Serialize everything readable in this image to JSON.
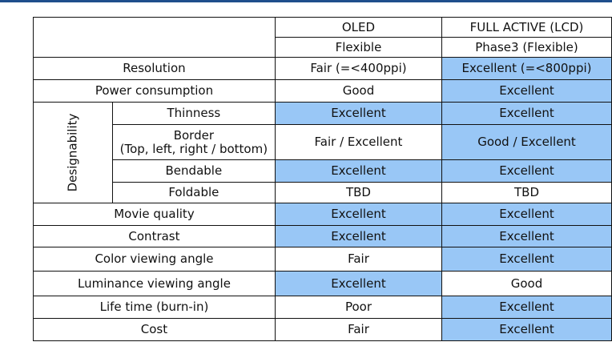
{
  "colors": {
    "highlight": "#99c7f6",
    "border": "#111111",
    "top_bar": "#1f4e8c"
  },
  "header": {
    "col1_line1": "OLED",
    "col1_line2": "Flexible",
    "col2_line1": "FULL ACTIVE (LCD)",
    "col2_line2": "Phase3 (Flexible)"
  },
  "group_label": "Designability",
  "rows": [
    {
      "label": "Resolution",
      "oled": "Fair (=<400ppi)",
      "lcd": "Excellent (=<800ppi)"
    },
    {
      "label": "Power consumption",
      "oled": "Good",
      "lcd": "Excellent"
    },
    {
      "label": "Thinness",
      "oled": "Excellent",
      "lcd": "Excellent"
    },
    {
      "label_line1": "Border",
      "label_line2": "(Top, left, right / bottom)",
      "oled": "Fair / Excellent",
      "lcd": "Good / Excellent"
    },
    {
      "label": "Bendable",
      "oled": "Excellent",
      "lcd": "Excellent"
    },
    {
      "label": "Foldable",
      "oled": "TBD",
      "lcd": "TBD"
    },
    {
      "label": "Movie quality",
      "oled": "Excellent",
      "lcd": "Excellent"
    },
    {
      "label": "Contrast",
      "oled": "Excellent",
      "lcd": "Excellent"
    },
    {
      "label": "Color viewing angle",
      "oled": "Fair",
      "lcd": "Excellent"
    },
    {
      "label": "Luminance viewing angle",
      "oled": "Excellent",
      "lcd": "Good"
    },
    {
      "label": "Life time (burn-in)",
      "oled": "Poor",
      "lcd": "Excellent"
    },
    {
      "label": "Cost",
      "oled": "Fair",
      "lcd": "Excellent"
    }
  ]
}
